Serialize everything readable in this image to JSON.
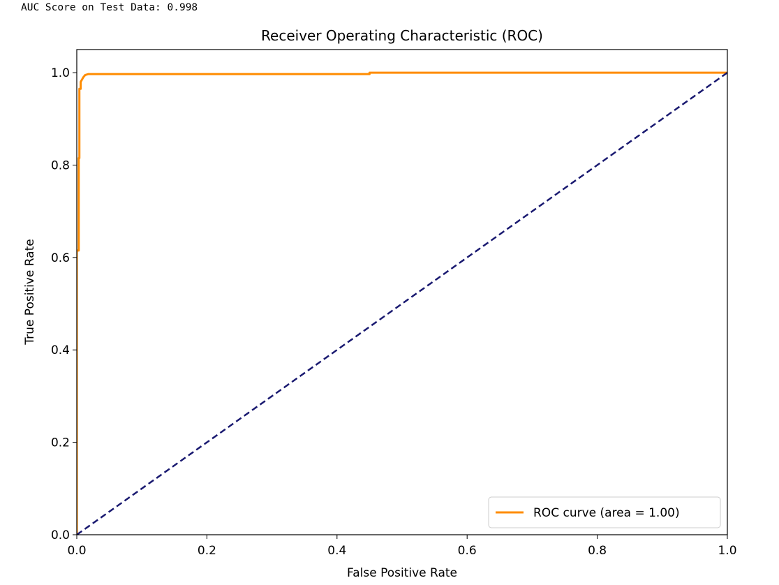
{
  "output_line": "AUC Score on Test Data: 0.998",
  "chart_data": {
    "type": "line",
    "title": "Receiver Operating Characteristic (ROC)",
    "xlabel": "False Positive Rate",
    "ylabel": "True Positive Rate",
    "xlim": [
      0.0,
      1.0
    ],
    "ylim": [
      0.0,
      1.05
    ],
    "xticks": [
      "0.0",
      "0.2",
      "0.4",
      "0.6",
      "0.8",
      "1.0"
    ],
    "yticks": [
      "0.0",
      "0.2",
      "0.4",
      "0.6",
      "0.8",
      "1.0"
    ],
    "legend_position": "bottom-right",
    "grid": false,
    "series": [
      {
        "name": "ROC curve (area = 1.00)",
        "color": "#ff8c00",
        "style": "solid",
        "x": [
          0.0,
          0.0,
          0.003,
          0.003,
          0.004,
          0.004,
          0.006,
          0.006,
          0.008,
          0.01,
          0.013,
          0.018,
          0.45,
          0.45,
          1.0
        ],
        "y": [
          0.0,
          0.615,
          0.615,
          0.815,
          0.815,
          0.965,
          0.965,
          0.98,
          0.985,
          0.99,
          0.995,
          0.997,
          0.997,
          1.0,
          1.0
        ]
      },
      {
        "name": "",
        "color": "#191970",
        "style": "dashed",
        "x": [
          0.0,
          1.0
        ],
        "y": [
          0.0,
          1.0
        ]
      }
    ]
  }
}
